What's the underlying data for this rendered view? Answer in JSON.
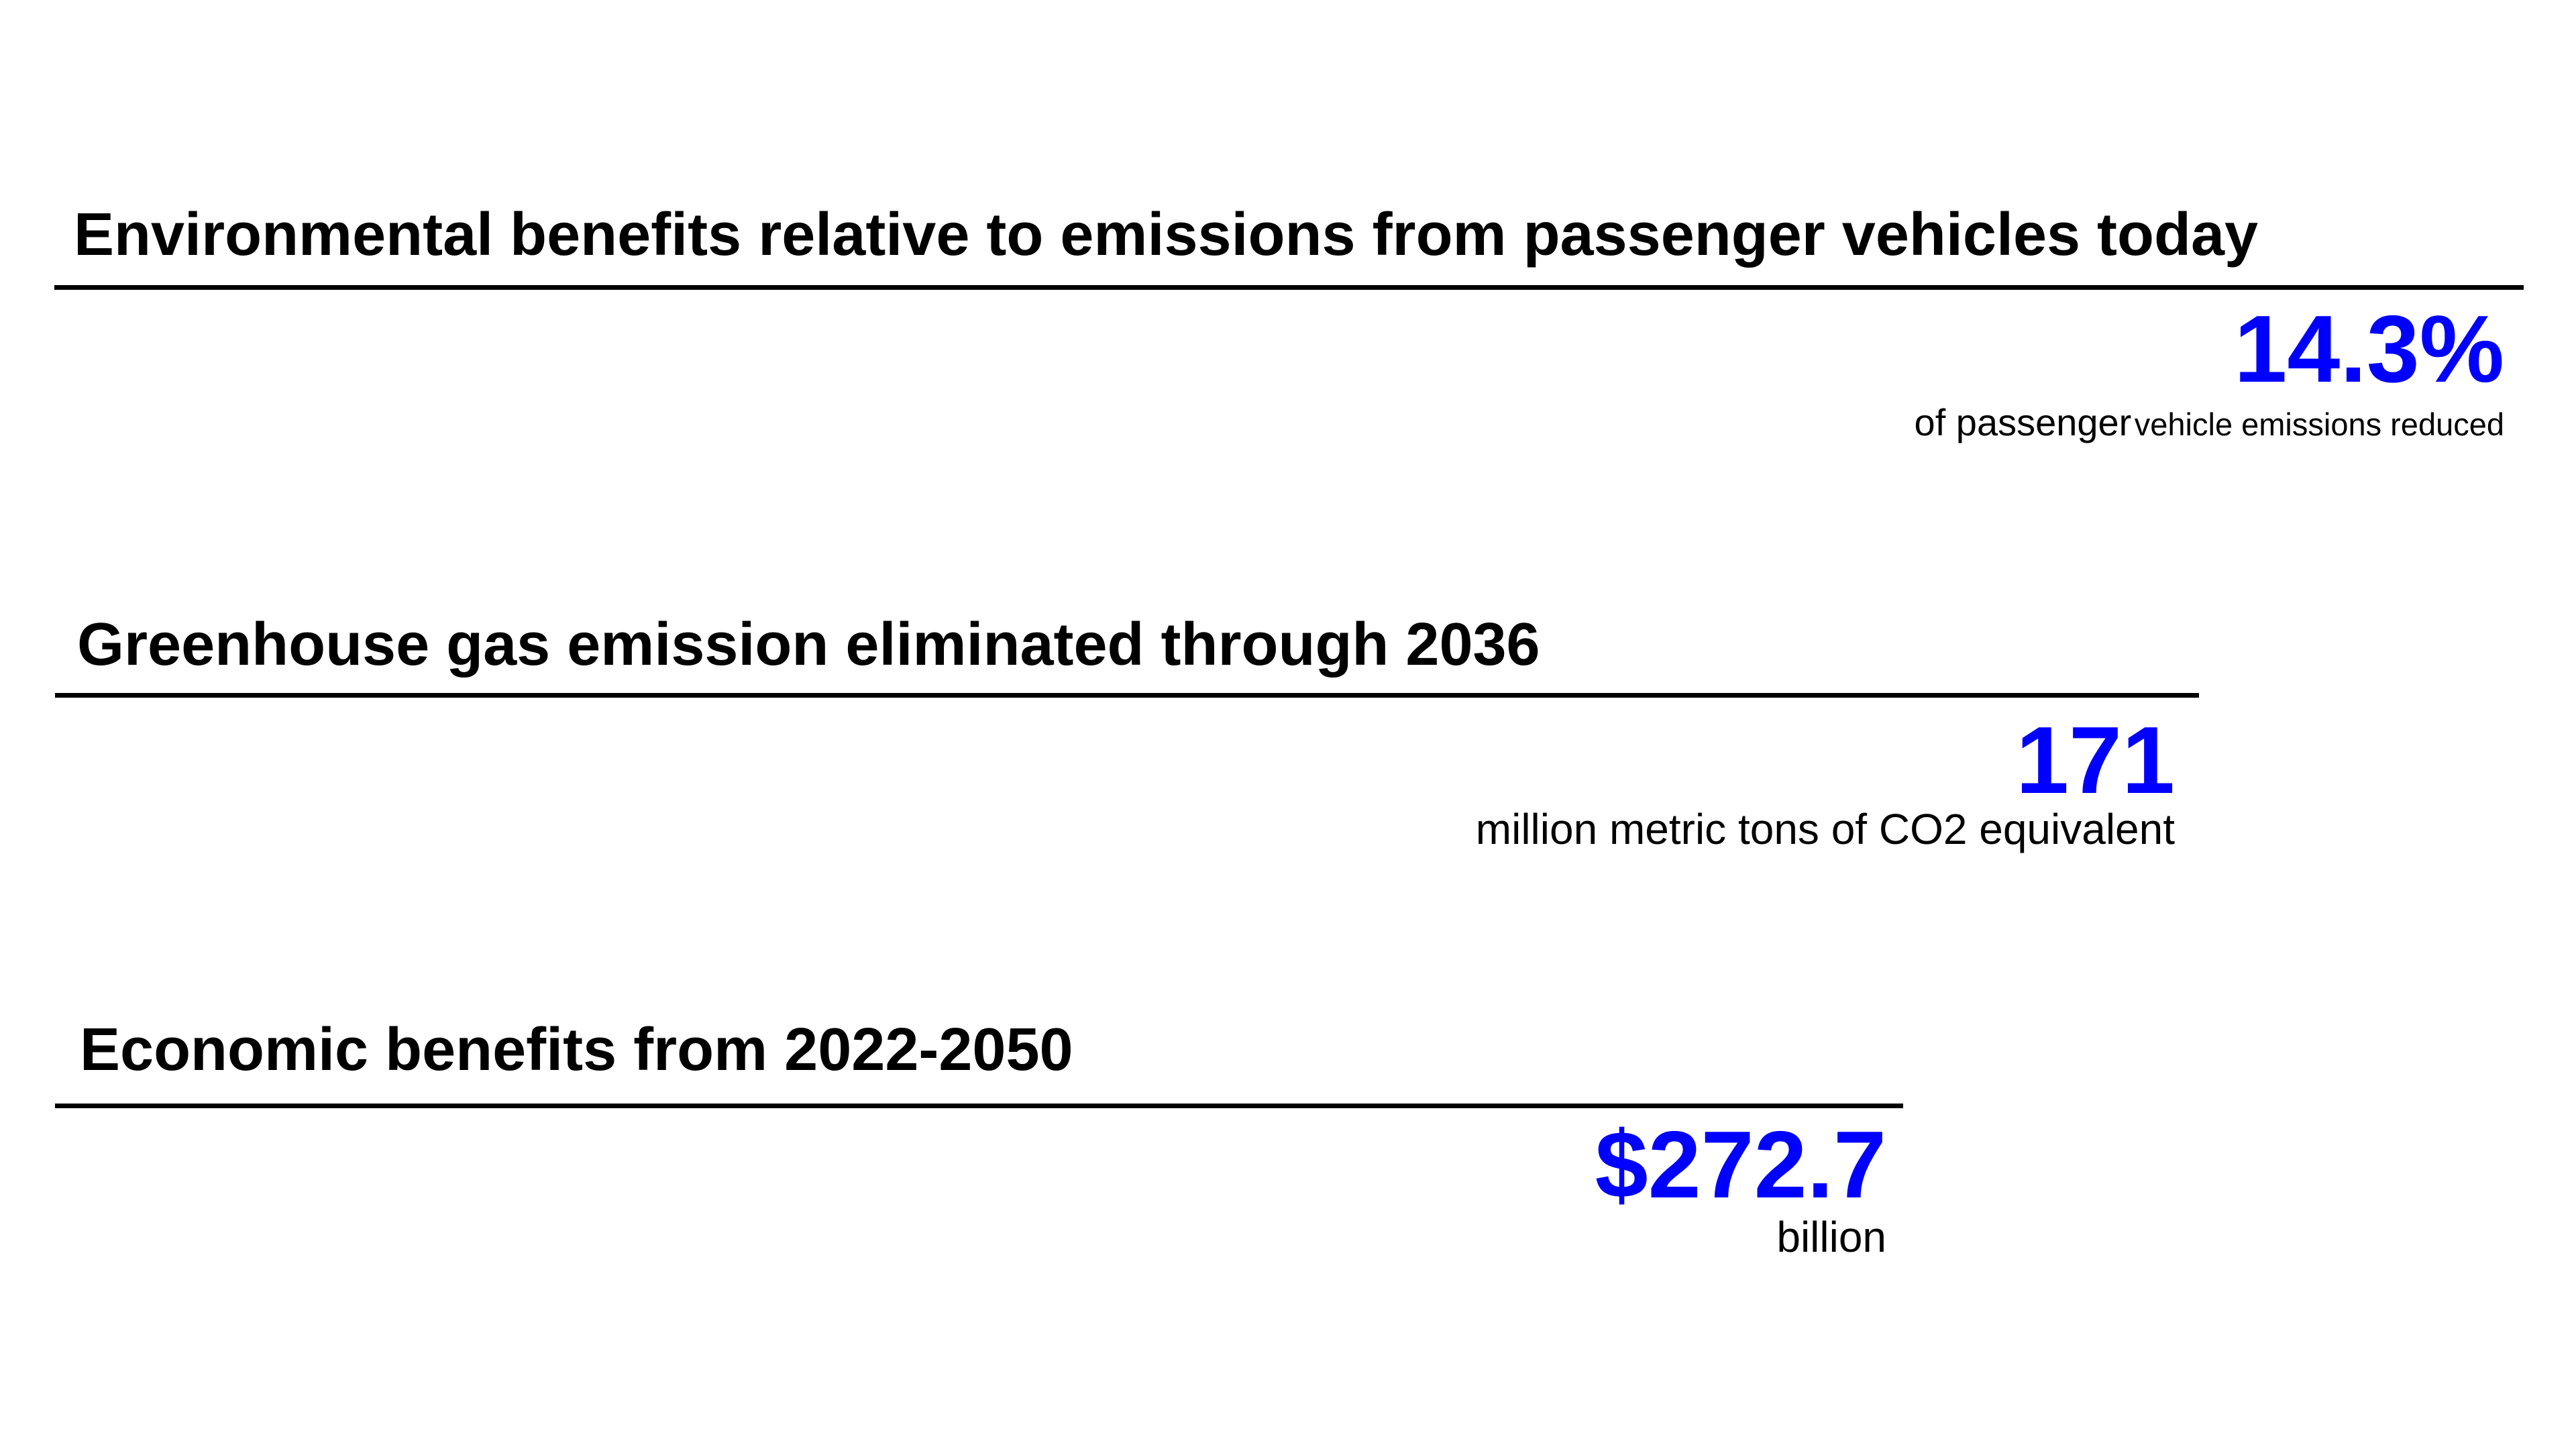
{
  "page": {
    "background": "#ffffff",
    "accent_blue": "#0000ff",
    "text_black": "#000000"
  },
  "sections": [
    {
      "heading": "Environmental benefits relative to emissions from passenger vehicles today",
      "stat_value": "14.3%",
      "caption_emphasis": "of passenger",
      "caption_rest": "vehicle emissions reduced"
    },
    {
      "heading": "Greenhouse gas emission eliminated through 2036",
      "stat_value": "171",
      "caption": "million metric tons of CO2 equivalent"
    },
    {
      "heading": "Economic benefits from 2022-2050",
      "stat_value": "$272.7",
      "caption": "billion"
    }
  ]
}
